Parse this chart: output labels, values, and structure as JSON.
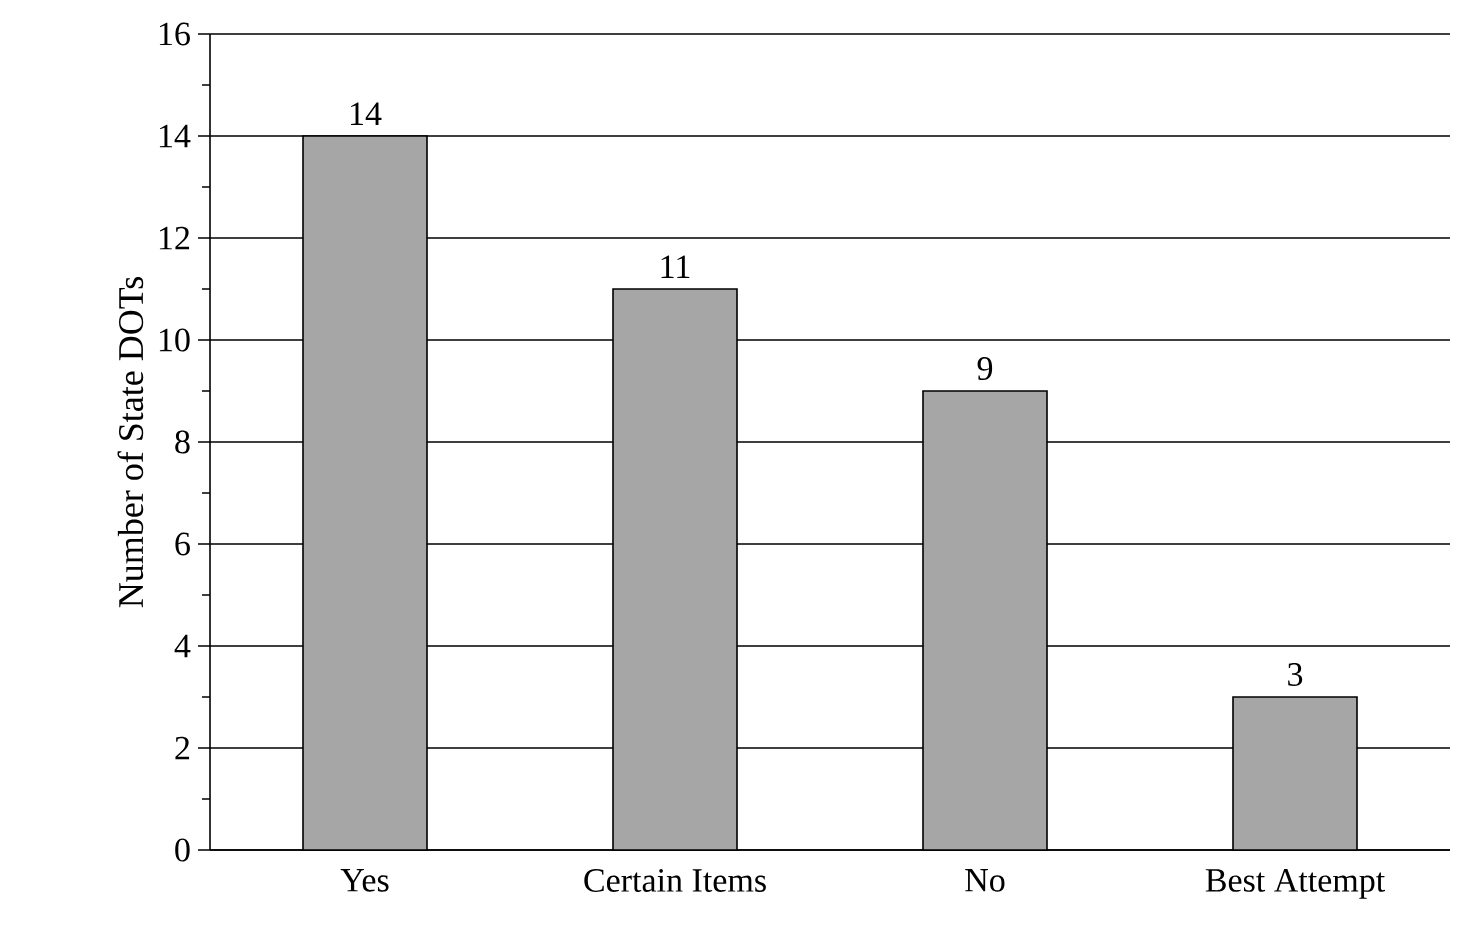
{
  "chart_data": {
    "type": "bar",
    "ylabel": "Number of State DOTs",
    "categories": [
      "Yes",
      "Certain Items",
      "No",
      "Best Attempt"
    ],
    "values": [
      14,
      11,
      9,
      3
    ],
    "color": "#a6a6a6",
    "ylim": [
      0,
      16
    ],
    "yticks": [
      0,
      2,
      4,
      6,
      8,
      10,
      12,
      14,
      16
    ],
    "grid": "y",
    "data_labels": true
  }
}
